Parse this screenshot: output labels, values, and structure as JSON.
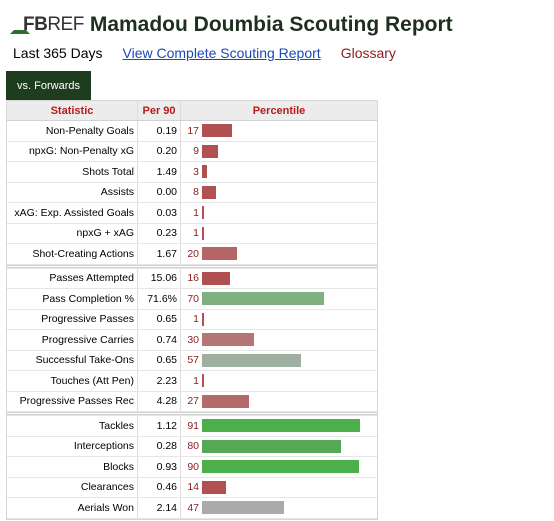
{
  "header": {
    "logo_fb": "FB",
    "logo_ref": "REF",
    "title": "Mamadou Doumbia Scouting Report"
  },
  "subnav": {
    "period": "Last 365 Days",
    "complete_link": "View Complete Scouting Report",
    "glossary": "Glossary"
  },
  "tab": {
    "label": "vs. Forwards"
  },
  "table": {
    "headers": [
      "Statistic",
      "Per 90",
      "Percentile"
    ],
    "groups": [
      [
        {
          "stat": "Non-Penalty Goals",
          "per90": "0.19",
          "percentile": 17,
          "color": "#b05050"
        },
        {
          "stat": "npxG: Non-Penalty xG",
          "per90": "0.20",
          "percentile": 9,
          "color": "#b05050"
        },
        {
          "stat": "Shots Total",
          "per90": "1.49",
          "percentile": 3,
          "color": "#b05050"
        },
        {
          "stat": "Assists",
          "per90": "0.00",
          "percentile": 8,
          "color": "#b05050"
        },
        {
          "stat": "xAG: Exp. Assisted Goals",
          "per90": "0.03",
          "percentile": 1,
          "color": "#b05050"
        },
        {
          "stat": "npxG + xAG",
          "per90": "0.23",
          "percentile": 1,
          "color": "#b05050"
        },
        {
          "stat": "Shot-Creating Actions",
          "per90": "1.67",
          "percentile": 20,
          "color": "#b56565"
        }
      ],
      [
        {
          "stat": "Passes Attempted",
          "per90": "15.06",
          "percentile": 16,
          "color": "#b05050"
        },
        {
          "stat": "Pass Completion %",
          "per90": "71.6%",
          "percentile": 70,
          "color": "#80b080"
        },
        {
          "stat": "Progressive Passes",
          "per90": "0.65",
          "percentile": 1,
          "color": "#b05050"
        },
        {
          "stat": "Progressive Carries",
          "per90": "0.74",
          "percentile": 30,
          "color": "#b57575"
        },
        {
          "stat": "Successful Take-Ons",
          "per90": "0.65",
          "percentile": 57,
          "color": "#a0b0a0"
        },
        {
          "stat": "Touches (Att Pen)",
          "per90": "2.23",
          "percentile": 1,
          "color": "#b05050"
        },
        {
          "stat": "Progressive Passes Rec",
          "per90": "4.28",
          "percentile": 27,
          "color": "#b56a6a"
        }
      ],
      [
        {
          "stat": "Tackles",
          "per90": "1.12",
          "percentile": 91,
          "color": "#4caf4c"
        },
        {
          "stat": "Interceptions",
          "per90": "0.28",
          "percentile": 80,
          "color": "#55a855"
        },
        {
          "stat": "Blocks",
          "per90": "0.93",
          "percentile": 90,
          "color": "#4caf4c"
        },
        {
          "stat": "Clearances",
          "per90": "0.46",
          "percentile": 14,
          "color": "#b05050"
        },
        {
          "stat": "Aerials Won",
          "per90": "2.14",
          "percentile": 47,
          "color": "#aaaaaa"
        }
      ]
    ]
  }
}
